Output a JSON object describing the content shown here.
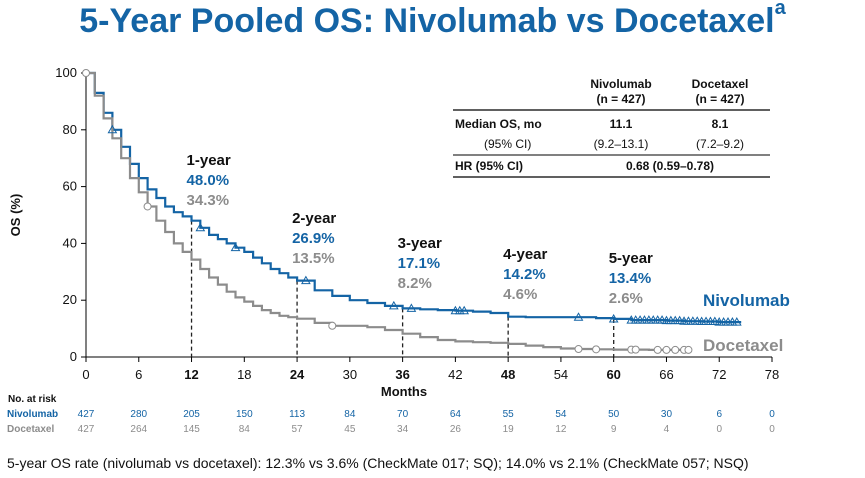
{
  "title": "5-Year Pooled OS: Nivolumab vs Docetaxel",
  "title_sup": "a",
  "footnote": "5-year OS rate (nivolumab vs docetaxel): 12.3% vs 3.6% (CheckMate 017; SQ); 14.0% vs 2.1% (CheckMate 057; NSQ)",
  "colors": {
    "nivolumab": "#1464a5",
    "docetaxel": "#8c8c8c"
  },
  "chart_data": {
    "type": "line",
    "xlabel": "Months",
    "ylabel": "OS (%)",
    "xlim": [
      0,
      78
    ],
    "ylim": [
      0,
      100
    ],
    "xticks": [
      0,
      6,
      12,
      18,
      24,
      30,
      36,
      42,
      48,
      54,
      60,
      66,
      72,
      78
    ],
    "yticks": [
      0,
      20,
      40,
      60,
      80,
      100
    ],
    "series": [
      {
        "name": "Nivolumab",
        "x": [
          0,
          1,
          2,
          3,
          4,
          5,
          6,
          7,
          8,
          9,
          10,
          11,
          12,
          13,
          14,
          15,
          16,
          17,
          18,
          19,
          20,
          21,
          22,
          23,
          24,
          26,
          28,
          30,
          32,
          34,
          36,
          38,
          40,
          42,
          44,
          46,
          48,
          50,
          52,
          54,
          56,
          58,
          60,
          62,
          64,
          66,
          68,
          70,
          72,
          74.5
        ],
        "y": [
          100,
          93,
          86,
          80,
          74,
          68,
          63,
          59,
          56,
          53,
          51,
          49.5,
          48,
          45.5,
          43,
          41.5,
          40,
          38.5,
          37,
          35,
          33,
          31,
          29.5,
          28,
          26.9,
          23.5,
          21.5,
          20,
          19,
          18,
          17.1,
          16.8,
          16.5,
          16.3,
          16,
          15.5,
          14.2,
          14,
          14,
          14,
          14,
          13.7,
          13.4,
          13,
          13,
          12.8,
          12.6,
          12.5,
          12.3,
          12.3
        ]
      },
      {
        "name": "Docetaxel",
        "x": [
          0,
          1,
          2,
          3,
          4,
          5,
          6,
          7,
          8,
          9,
          10,
          11,
          12,
          13,
          14,
          15,
          16,
          17,
          18,
          19,
          20,
          21,
          22,
          23,
          24,
          26,
          28,
          30,
          32,
          34,
          36,
          38,
          40,
          42,
          44,
          46,
          48,
          50,
          52,
          54,
          56,
          58,
          60,
          62,
          64,
          66,
          68.5
        ],
        "y": [
          100,
          92,
          84,
          77,
          70,
          63,
          58,
          53,
          48,
          44,
          40,
          37,
          34.3,
          31,
          28,
          25.5,
          23,
          21,
          19.5,
          18,
          16.5,
          15.5,
          14.5,
          14,
          13.5,
          12,
          11,
          11,
          10.5,
          9.5,
          8.2,
          7,
          6,
          5.5,
          5.2,
          5,
          4.6,
          4,
          3.5,
          3,
          2.8,
          2.7,
          2.6,
          2.6,
          2.5,
          2.5,
          2.5
        ]
      }
    ],
    "censor_nivolumab": [
      3,
      13,
      17,
      25,
      35,
      37,
      42,
      42.5,
      43,
      56,
      60,
      62,
      62.5,
      63,
      63.5,
      64,
      64.5,
      65,
      65.5,
      66,
      66.5,
      67,
      67.5,
      68,
      68.5,
      69,
      69.5,
      70,
      70.5,
      71,
      71.5,
      72,
      72.5,
      73,
      73.5,
      74
    ],
    "censor_docetaxel": [
      0,
      7,
      28,
      56,
      58,
      62,
      62.5,
      65,
      66,
      67,
      68,
      68.5
    ],
    "landmarks": [
      {
        "month": 12,
        "label": "1-year",
        "nivolumab": "48.0%",
        "docetaxel": "34.3%"
      },
      {
        "month": 24,
        "label": "2-year",
        "nivolumab": "26.9%",
        "docetaxel": "13.5%"
      },
      {
        "month": 36,
        "label": "3-year",
        "nivolumab": "17.1%",
        "docetaxel": "8.2%"
      },
      {
        "month": 48,
        "label": "4-year",
        "nivolumab": "14.2%",
        "docetaxel": "4.6%"
      },
      {
        "month": 60,
        "label": "5-year",
        "nivolumab": "13.4%",
        "docetaxel": "2.6%"
      }
    ],
    "series_labels": {
      "nivolumab": "Nivolumab",
      "docetaxel": "Docetaxel"
    }
  },
  "stats_table": {
    "col1_name": "Nivolumab",
    "col1_n": "(n = 427)",
    "col2_name": "Docetaxel",
    "col2_n": "(n = 427)",
    "row1_label": "Median OS, mo",
    "row1_v1": "11.1",
    "row1_v2": "8.1",
    "row2_label": "(95% CI)",
    "row2_v1": "(9.2–13.1)",
    "row2_v2": "(7.2–9.2)",
    "row3_label": "HR (95% CI)",
    "row3_value": "0.68 (0.59–0.78)"
  },
  "risk_table": {
    "title": "No. at risk",
    "months": [
      0,
      6,
      12,
      18,
      24,
      30,
      36,
      42,
      48,
      54,
      60,
      66,
      72,
      78
    ],
    "nivolumab_label": "Nivolumab",
    "nivolumab": [
      "427",
      "280",
      "205",
      "150",
      "113",
      "84",
      "70",
      "64",
      "55",
      "54",
      "50",
      "30",
      "6",
      "0"
    ],
    "docetaxel_label": "Docetaxel",
    "docetaxel": [
      "427",
      "264",
      "145",
      "84",
      "57",
      "45",
      "34",
      "26",
      "19",
      "12",
      "9",
      "4",
      "0",
      "0"
    ]
  }
}
